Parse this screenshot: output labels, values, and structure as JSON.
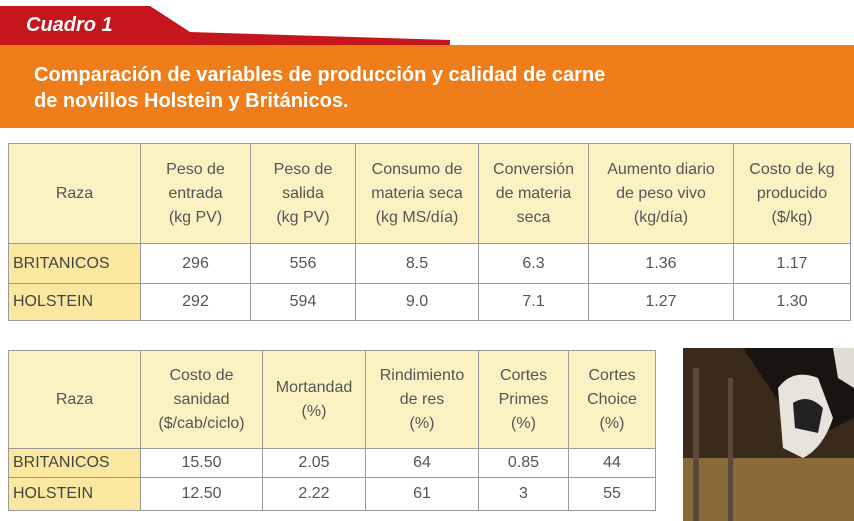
{
  "header": {
    "tab": "Cuadro 1",
    "title": "Comparación de variables de producción y calidad de carne\nde novillos Holstein y Británicos."
  },
  "table1": {
    "columns": [
      "Raza",
      "Peso de\nentrada\n(kg PV)",
      "Peso de\nsalida\n(kg PV)",
      "Consumo de\nmateria seca\n(kg MS/día)",
      "Conversión\nde materia\nseca",
      "Aumento diario\nde peso vivo\n(kg/día)",
      "Costo de kg\nproducido\n($/kg)"
    ],
    "rows": [
      [
        "BRITANICOS",
        "296",
        "556",
        "8.5",
        "6.3",
        "1.36",
        "1.17"
      ],
      [
        "HOLSTEIN",
        "292",
        "594",
        "9.0",
        "7.1",
        "1.27",
        "1.30"
      ]
    ]
  },
  "table2": {
    "columns": [
      "Raza",
      "Costo de\nsanidad\n($/cab/ciclo)",
      "Mortandad\n(%)",
      "Rindimiento\nde res\n(%)",
      "Cortes\nPrimes\n(%)",
      "Cortes\nChoice\n(%)"
    ],
    "rows": [
      [
        "BRITANICOS",
        "15.50",
        "2.05",
        "64",
        "0.85",
        "44"
      ],
      [
        "HOLSTEIN",
        "12.50",
        "2.22",
        "61",
        "3",
        "55"
      ]
    ]
  }
}
